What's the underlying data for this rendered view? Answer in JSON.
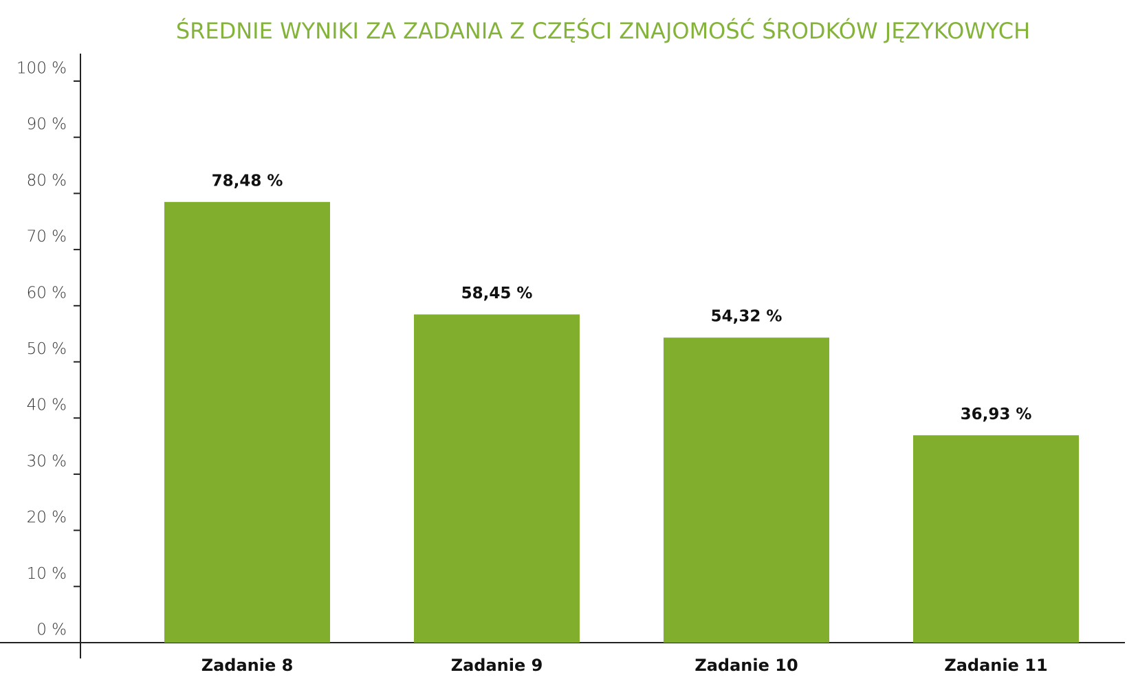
{
  "chart_data": {
    "type": "bar",
    "title": "ŚREDNIE WYNIKI ZA ZADANIA Z CZĘŚCI ZNAJOMOŚĆ ŚRODKÓW JĘZYKOWYCH",
    "categories": [
      "Zadanie 8",
      "Zadanie 9",
      "Zadanie 10",
      "Zadanie 11"
    ],
    "values": [
      78.48,
      58.45,
      54.32,
      36.93
    ],
    "value_labels": [
      "78,48 %",
      "58,45 %",
      "54,32 %",
      "36,93 %"
    ],
    "color": "#82ae2e",
    "ylim": [
      0,
      100
    ],
    "yticks": [
      {
        "value": 0,
        "label": "0 %"
      },
      {
        "value": 10,
        "label": "10 %"
      },
      {
        "value": 20,
        "label": "20 %"
      },
      {
        "value": 30,
        "label": "30 %"
      },
      {
        "value": 40,
        "label": "40 %"
      },
      {
        "value": 50,
        "label": "50 %"
      },
      {
        "value": 60,
        "label": "60 %"
      },
      {
        "value": 70,
        "label": "70 %"
      },
      {
        "value": 80,
        "label": "80 %"
      },
      {
        "value": 90,
        "label": "90 %"
      },
      {
        "value": 100,
        "label": "100 %"
      }
    ],
    "grid": false
  }
}
